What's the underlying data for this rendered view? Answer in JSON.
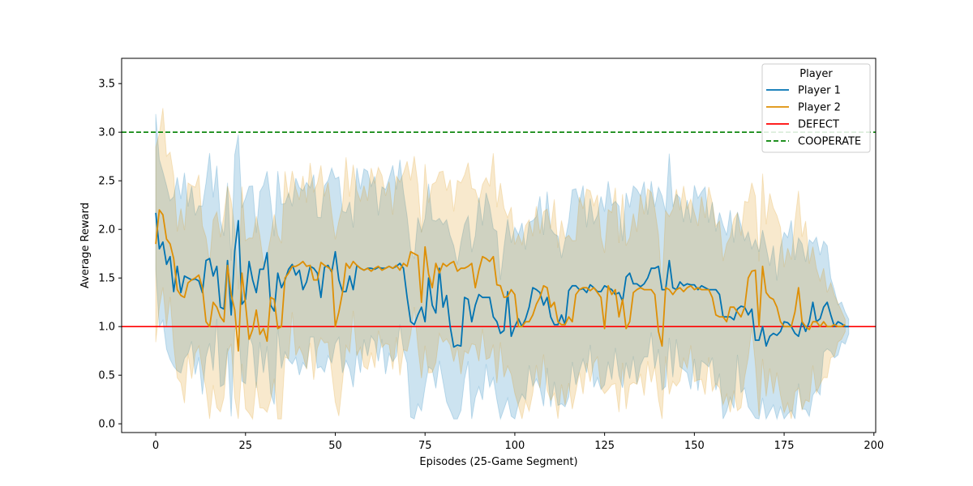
{
  "chart_data": {
    "type": "line",
    "xlabel": "Episodes (25-Game Segment)",
    "ylabel": "Average Reward",
    "xlim": [
      -9.5,
      200.5
    ],
    "ylim": [
      -0.09,
      3.76
    ],
    "xticks": [
      0,
      25,
      50,
      75,
      100,
      125,
      150,
      175,
      200
    ],
    "yticks": [
      0.0,
      0.5,
      1.0,
      1.5,
      2.0,
      2.5,
      3.0,
      3.5
    ],
    "xtick_labels": [
      "0",
      "25",
      "50",
      "75",
      "100",
      "125",
      "150",
      "175",
      "200"
    ],
    "ytick_labels": [
      "0.0",
      "0.5",
      "1.0",
      "1.5",
      "2.0",
      "2.5",
      "3.0",
      "3.5"
    ],
    "grid": false,
    "legend": {
      "title": "Player",
      "position": "upper-right",
      "entries": [
        "Player 1",
        "Player 2",
        "DEFECT",
        "COOPERATE"
      ]
    },
    "hlines": [
      {
        "name": "DEFECT",
        "y": 1.0,
        "color": "#ff0000",
        "style": "solid"
      },
      {
        "name": "COOPERATE",
        "y": 3.0,
        "color": "#008000",
        "style": "dashed"
      }
    ],
    "series": [
      {
        "name": "Player 1",
        "color": "#0173b2",
        "x_start": 0,
        "x_step": 1,
        "values": [
          2.17,
          1.8,
          1.87,
          1.64,
          1.72,
          1.36,
          1.62,
          1.35,
          1.52,
          1.5,
          1.48,
          1.49,
          1.47,
          1.35,
          1.68,
          1.7,
          1.52,
          1.62,
          1.2,
          1.18,
          1.68,
          1.12,
          1.78,
          2.09,
          1.23,
          1.28,
          1.67,
          1.48,
          1.35,
          1.59,
          1.59,
          1.76,
          1.22,
          1.16,
          1.55,
          1.4,
          1.48,
          1.59,
          1.64,
          1.53,
          1.58,
          1.38,
          1.46,
          1.62,
          1.6,
          1.55,
          1.3,
          1.61,
          1.63,
          1.56,
          1.77,
          1.48,
          1.36,
          1.36,
          1.52,
          1.38,
          1.63,
          1.6,
          1.58,
          1.6,
          1.6,
          1.59,
          1.61,
          1.6,
          1.6,
          1.62,
          1.6,
          1.62,
          1.65,
          1.6,
          1.3,
          1.05,
          1.02,
          1.12,
          1.2,
          1.05,
          1.5,
          1.22,
          1.14,
          1.6,
          1.2,
          1.32,
          1.0,
          0.79,
          0.81,
          0.8,
          1.3,
          1.28,
          1.05,
          1.22,
          1.33,
          1.3,
          1.3,
          1.3,
          1.1,
          1.05,
          0.93,
          0.96,
          1.36,
          0.9,
          1.0,
          1.08,
          1.0,
          1.08,
          1.2,
          1.4,
          1.38,
          1.35,
          1.22,
          1.3,
          1.1,
          1.02,
          1.02,
          1.12,
          1.02,
          1.37,
          1.42,
          1.42,
          1.38,
          1.39,
          1.35,
          1.43,
          1.4,
          1.36,
          1.36,
          1.42,
          1.4,
          1.38,
          1.33,
          1.35,
          1.26,
          1.51,
          1.55,
          1.44,
          1.44,
          1.41,
          1.44,
          1.5,
          1.6,
          1.6,
          1.62,
          1.38,
          1.38,
          1.68,
          1.4,
          1.38,
          1.46,
          1.42,
          1.44,
          1.43,
          1.43,
          1.38,
          1.42,
          1.4,
          1.38,
          1.38,
          1.38,
          1.33,
          1.1,
          1.1,
          1.1,
          1.07,
          1.18,
          1.21,
          1.2,
          1.12,
          1.18,
          0.86,
          0.86,
          1.0,
          0.8,
          0.9,
          0.93,
          0.91,
          0.95,
          1.05,
          1.04,
          1.0,
          0.93,
          0.9,
          1.05,
          0.95,
          1.05,
          1.25,
          1.05,
          1.08,
          1.2,
          1.25,
          1.12,
          1.0,
          1.05,
          1.03,
          1.0,
          1.0
        ]
      },
      {
        "name": "Player 2",
        "color": "#de8f05",
        "x_start": 0,
        "x_step": 1,
        "values": [
          1.85,
          2.2,
          2.15,
          1.9,
          1.85,
          1.7,
          1.38,
          1.32,
          1.3,
          1.45,
          1.48,
          1.5,
          1.53,
          1.4,
          1.05,
          1.0,
          1.25,
          1.2,
          1.1,
          1.05,
          1.63,
          1.33,
          1.17,
          0.75,
          1.55,
          1.23,
          0.87,
          0.97,
          1.17,
          0.92,
          0.98,
          0.85,
          1.3,
          1.28,
          0.98,
          1.0,
          1.5,
          1.55,
          1.62,
          1.62,
          1.64,
          1.67,
          1.62,
          1.63,
          1.48,
          1.48,
          1.66,
          1.63,
          1.61,
          1.58,
          1.0,
          1.15,
          1.35,
          1.65,
          1.6,
          1.67,
          1.63,
          1.6,
          1.58,
          1.6,
          1.57,
          1.6,
          1.62,
          1.58,
          1.6,
          1.62,
          1.6,
          1.63,
          1.58,
          1.65,
          1.62,
          1.77,
          1.75,
          1.73,
          1.25,
          1.82,
          1.54,
          1.4,
          1.65,
          1.55,
          1.65,
          1.62,
          1.65,
          1.67,
          1.57,
          1.6,
          1.6,
          1.62,
          1.65,
          1.4,
          1.58,
          1.72,
          1.7,
          1.67,
          1.72,
          1.43,
          1.42,
          1.3,
          1.31,
          1.38,
          1.33,
          1.0,
          1.0,
          1.05,
          1.05,
          1.12,
          1.23,
          1.3,
          1.42,
          1.4,
          1.2,
          1.25,
          1.05,
          1.02,
          1.02,
          1.1,
          1.05,
          1.33,
          1.38,
          1.4,
          1.4,
          1.37,
          1.4,
          1.35,
          1.3,
          0.98,
          1.42,
          1.33,
          1.38,
          1.1,
          1.28,
          0.98,
          1.05,
          1.35,
          1.38,
          1.4,
          1.38,
          1.38,
          1.38,
          1.33,
          0.95,
          0.8,
          1.4,
          1.38,
          1.33,
          1.38,
          1.4,
          1.36,
          1.4,
          1.42,
          1.38,
          1.4,
          1.38,
          1.38,
          1.38,
          1.3,
          1.12,
          1.1,
          1.1,
          1.05,
          1.2,
          1.2,
          1.15,
          1.1,
          1.2,
          1.5,
          1.57,
          1.58,
          1.0,
          1.62,
          1.35,
          1.3,
          1.28,
          1.2,
          1.05,
          1.0,
          1.0,
          1.0,
          1.15,
          1.4,
          1.05,
          1.0,
          0.97,
          1.05,
          1.05,
          1.0,
          1.05,
          1.0,
          1.0,
          1.02,
          1.0,
          1.0,
          1.02
        ]
      }
    ]
  }
}
